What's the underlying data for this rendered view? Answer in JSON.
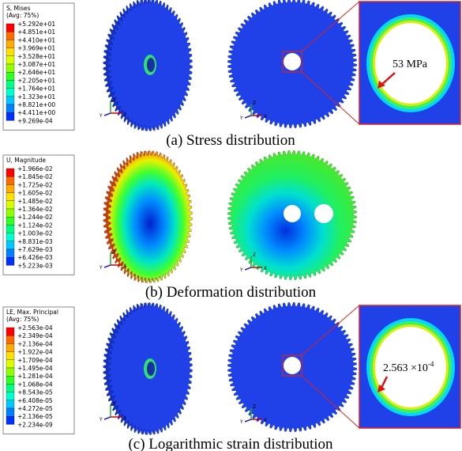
{
  "axis_labels": {
    "y": "Y",
    "z": "Z",
    "x": "X"
  },
  "panels": [
    {
      "legend": {
        "title": [
          "S, Mises",
          "(Avg: 75%)"
        ],
        "labels": [
          "+5.292e+01",
          "+4.851e+01",
          "+4.410e+01",
          "+3.969e+01",
          "+3.528e+01",
          "+3.087e+01",
          "+2.646e+01",
          "+2.205e+01",
          "+1.764e+01",
          "+1.323e+01",
          "+8.821e+00",
          "+4.411e+00",
          "+9.269e-04"
        ]
      },
      "annotation": {
        "base": "53 MPa"
      },
      "caption": "(a) Stress distribution"
    },
    {
      "legend": {
        "title": [
          "U, Magnitude"
        ],
        "labels": [
          "+1.966e-02",
          "+1.845e-02",
          "+1.725e-02",
          "+1.605e-02",
          "+1.485e-02",
          "+1.364e-02",
          "+1.244e-02",
          "+1.124e-02",
          "+1.003e-02",
          "+8.831e-03",
          "+7.629e-03",
          "+6.426e-03",
          "+5.223e-03"
        ]
      },
      "caption": "(b) Deformation distribution"
    },
    {
      "legend": {
        "title": [
          "LE, Max. Principal",
          "(Avg: 75%)"
        ],
        "labels": [
          "+2.563e-04",
          "+2.349e-04",
          "+2.136e-04",
          "+1.922e-04",
          "+1.709e-04",
          "+1.495e-04",
          "+1.281e-04",
          "+1.068e-04",
          "+8.543e-05",
          "+6.408e-05",
          "+4.272e-05",
          "+2.136e-05",
          "+2.234e-09"
        ]
      },
      "annotation": {
        "base": "2.563 ×10",
        "exponent": "-4"
      },
      "caption": "(c) Logarithmic strain distribution"
    }
  ]
}
